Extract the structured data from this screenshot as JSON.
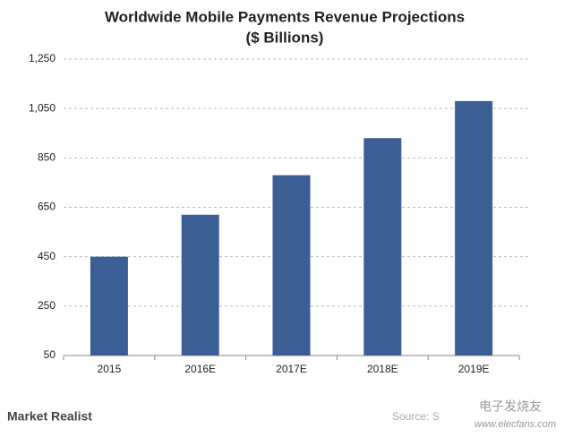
{
  "chart_data": {
    "type": "bar",
    "title": "Worldwide Mobile Payments Revenue Projections",
    "subtitle": "($ Billions)",
    "categories": [
      "2015",
      "2016E",
      "2017E",
      "2018E",
      "2019E"
    ],
    "values": [
      450,
      620,
      780,
      930,
      1080
    ],
    "color": "#3b5e94",
    "ylim": [
      50,
      1250
    ],
    "yticks": [
      50,
      250,
      450,
      650,
      {
        "value": 850,
        "label": "850"
      },
      {
        "value": 1050,
        "label": "1,050"
      },
      {
        "value": 1250,
        "label": "1,250"
      }
    ],
    "grid": true
  },
  "logo": "Market Realist",
  "source": "Source: S",
  "watermark": {
    "name": "电子发烧友",
    "url": "www.elecfans.com"
  }
}
